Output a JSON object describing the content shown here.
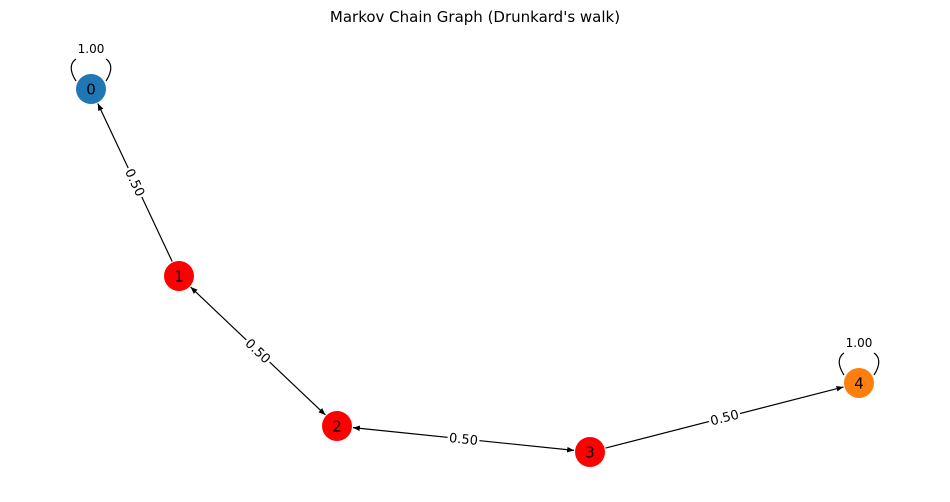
{
  "title": "Markov Chain Graph (Drunkard's walk)",
  "nodes": [
    {
      "id": "0",
      "label": "0",
      "color": "#1f77b4"
    },
    {
      "id": "1",
      "label": "1",
      "color": "#ff0000"
    },
    {
      "id": "2",
      "label": "2",
      "color": "#ff0000"
    },
    {
      "id": "3",
      "label": "3",
      "color": "#ff0000"
    },
    {
      "id": "4",
      "label": "4",
      "color": "#ff7f0e"
    }
  ],
  "edges": [
    {
      "from": "1",
      "to": "0",
      "label": "0.50"
    },
    {
      "from": "1",
      "to": "2",
      "label": "0.50",
      "bidirectional": true
    },
    {
      "from": "2",
      "to": "3",
      "label": "0.50",
      "bidirectional": true
    },
    {
      "from": "3",
      "to": "4",
      "label": "0.50"
    }
  ],
  "self_loops": [
    {
      "node": "0",
      "label": "1.00"
    },
    {
      "node": "4",
      "label": "1.00"
    }
  ]
}
